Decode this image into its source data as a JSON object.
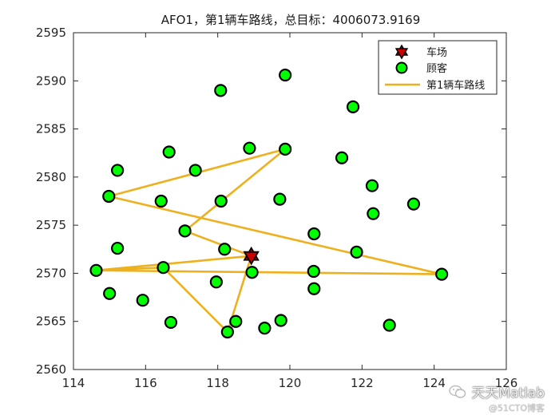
{
  "chart_data": {
    "type": "scatter",
    "title": "AFO1，第1辆车路线，总目标：4006073.9169",
    "xlabel": "",
    "ylabel": "",
    "xlim": [
      114,
      126
    ],
    "ylim": [
      2560,
      2595
    ],
    "xticks": [
      114,
      116,
      118,
      120,
      122,
      124,
      126
    ],
    "yticks": [
      2560,
      2565,
      2570,
      2575,
      2580,
      2585,
      2590,
      2595
    ],
    "grid": false,
    "legend_position": "top-right",
    "colors": {
      "depot": "#cc0000",
      "customer": "#00ff00",
      "route": "#edb120",
      "axis": "#262626"
    },
    "legend": [
      {
        "label": "车场",
        "marker": "hexagram"
      },
      {
        "label": "顾客",
        "marker": "circle"
      },
      {
        "label": "第1辆车路线",
        "marker": "line"
      }
    ],
    "depot": {
      "x": 118.93,
      "y": 2571.8
    },
    "customers": [
      [
        118.08,
        2589.0
      ],
      [
        119.87,
        2590.6
      ],
      [
        121.75,
        2587.3
      ],
      [
        116.65,
        2582.6
      ],
      [
        118.88,
        2583.0
      ],
      [
        119.87,
        2582.9
      ],
      [
        121.44,
        2582.0
      ],
      [
        115.22,
        2580.7
      ],
      [
        117.38,
        2580.7
      ],
      [
        122.28,
        2579.1
      ],
      [
        123.43,
        2577.2
      ],
      [
        114.98,
        2578.0
      ],
      [
        116.43,
        2577.5
      ],
      [
        118.09,
        2577.5
      ],
      [
        119.72,
        2577.7
      ],
      [
        122.31,
        2576.2
      ],
      [
        117.09,
        2574.4
      ],
      [
        120.67,
        2574.1
      ],
      [
        115.22,
        2572.6
      ],
      [
        118.19,
        2572.5
      ],
      [
        121.85,
        2572.2
      ],
      [
        114.63,
        2570.3
      ],
      [
        116.49,
        2570.6
      ],
      [
        118.95,
        2570.1
      ],
      [
        120.66,
        2570.2
      ],
      [
        124.21,
        2569.9
      ],
      [
        117.96,
        2569.1
      ],
      [
        120.67,
        2568.4
      ],
      [
        115.0,
        2567.9
      ],
      [
        115.92,
        2567.2
      ],
      [
        116.7,
        2564.9
      ],
      [
        118.5,
        2565.0
      ],
      [
        119.75,
        2565.1
      ],
      [
        118.27,
        2563.9
      ],
      [
        119.3,
        2564.3
      ],
      [
        122.76,
        2564.6
      ]
    ],
    "route": {
      "name": "第1辆车路线",
      "x": [
        118.93,
        114.63,
        124.21,
        114.98,
        119.87,
        117.09,
        118.93,
        118.27,
        116.49,
        114.63
      ],
      "y": [
        2571.8,
        2570.3,
        2569.9,
        2578.0,
        2582.9,
        2574.4,
        2571.8,
        2563.9,
        2570.6,
        2570.3
      ]
    }
  },
  "watermark": {
    "line1": "天天Matlab",
    "line2": "@51CTO博客",
    "icon": "wechat-icon"
  }
}
